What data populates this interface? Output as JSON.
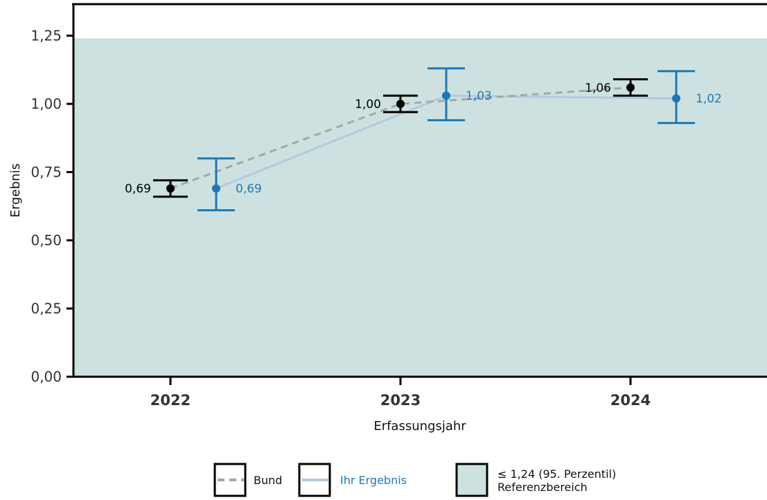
{
  "chart_data": {
    "type": "line",
    "xlabel": "Erfassungsjahr",
    "ylabel": "Ergebnis",
    "categories": [
      "2022",
      "2023",
      "2024"
    ],
    "ylim": [
      0,
      1.35
    ],
    "yticks": [
      0,
      0.25,
      0.5,
      0.75,
      1.0,
      1.25
    ],
    "ytick_labels": [
      "0,00",
      "0,25",
      "0,50",
      "0,75",
      "1,00",
      "1,25"
    ],
    "grid": false,
    "reference_area": {
      "upper": 1.24,
      "label_line1": "≤ 1,24 (95. Perzentil)",
      "label_line2": "Referenzbereich",
      "color": "#cde2e0"
    },
    "series": [
      {
        "name": "Bund",
        "color": "#000000",
        "line_color": "#a6a6a6",
        "line_style": "dashed",
        "values": [
          0.69,
          1.0,
          1.06
        ],
        "labels": [
          "0,69",
          "1,00",
          "1,06"
        ],
        "ci_low": [
          0.66,
          0.97,
          1.03
        ],
        "ci_high": [
          0.72,
          1.03,
          1.09
        ]
      },
      {
        "name": "Ihr Ergebnis",
        "color": "#1f77b4",
        "line_color": "#b3c9e0",
        "line_style": "solid",
        "values": [
          0.69,
          1.03,
          1.02
        ],
        "labels": [
          "0,69",
          "1,03",
          "1,02"
        ],
        "ci_low": [
          0.61,
          0.94,
          0.93
        ],
        "ci_high": [
          0.8,
          1.13,
          1.12
        ]
      }
    ],
    "legend_position": "bottom"
  }
}
